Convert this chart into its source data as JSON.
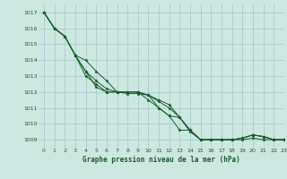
{
  "background_color": "#cce8e0",
  "grid_color": "#aacccc",
  "line_color": "#1a5c2a",
  "xlabel": "Graphe pression niveau de la mer (hPa)",
  "ylim": [
    1008.5,
    1017.5
  ],
  "xlim": [
    -0.5,
    23.0
  ],
  "yticks": [
    1009,
    1010,
    1011,
    1012,
    1013,
    1014,
    1015,
    1016,
    1017
  ],
  "xticks": [
    0,
    1,
    2,
    3,
    4,
    5,
    6,
    7,
    8,
    9,
    10,
    11,
    12,
    13,
    14,
    15,
    16,
    17,
    18,
    19,
    20,
    21,
    22,
    23
  ],
  "series": [
    [
      1017.0,
      1016.0,
      1015.5,
      1014.3,
      1013.3,
      1012.7,
      1012.2,
      1012.0,
      1012.0,
      1012.0,
      1011.5,
      1011.0,
      1010.5,
      1009.6,
      1009.6,
      1009.0,
      1009.0,
      1009.0,
      1009.0,
      1009.0,
      1009.1,
      1009.0,
      1009.0,
      1009.0
    ],
    [
      1017.0,
      1016.0,
      1015.5,
      1014.3,
      1013.3,
      1012.3,
      1012.0,
      1012.0,
      1011.9,
      1011.9,
      1011.8,
      1011.5,
      1011.2,
      1010.4,
      1009.6,
      1009.0,
      1009.0,
      1009.0,
      1009.0,
      1009.1,
      1009.3,
      1009.2,
      1009.0,
      1009.0
    ],
    [
      1017.0,
      1016.0,
      1015.5,
      1014.3,
      1013.0,
      1012.5,
      1012.0,
      1012.0,
      1012.0,
      1012.0,
      1011.8,
      1011.4,
      1011.0,
      1010.4,
      1009.5,
      1009.0,
      1009.0,
      1009.0,
      1009.0,
      1009.1,
      1009.3,
      1009.2,
      1009.0,
      1009.0
    ],
    [
      1017.0,
      1016.0,
      1015.5,
      1014.3,
      1014.0,
      1013.3,
      1012.7,
      1012.0,
      1012.0,
      1012.0,
      1011.8,
      1011.0,
      1010.5,
      1010.4,
      1009.6,
      1009.0,
      1009.0,
      1009.0,
      1009.0,
      1009.1,
      1009.3,
      1009.2,
      1009.0,
      1009.0
    ]
  ]
}
